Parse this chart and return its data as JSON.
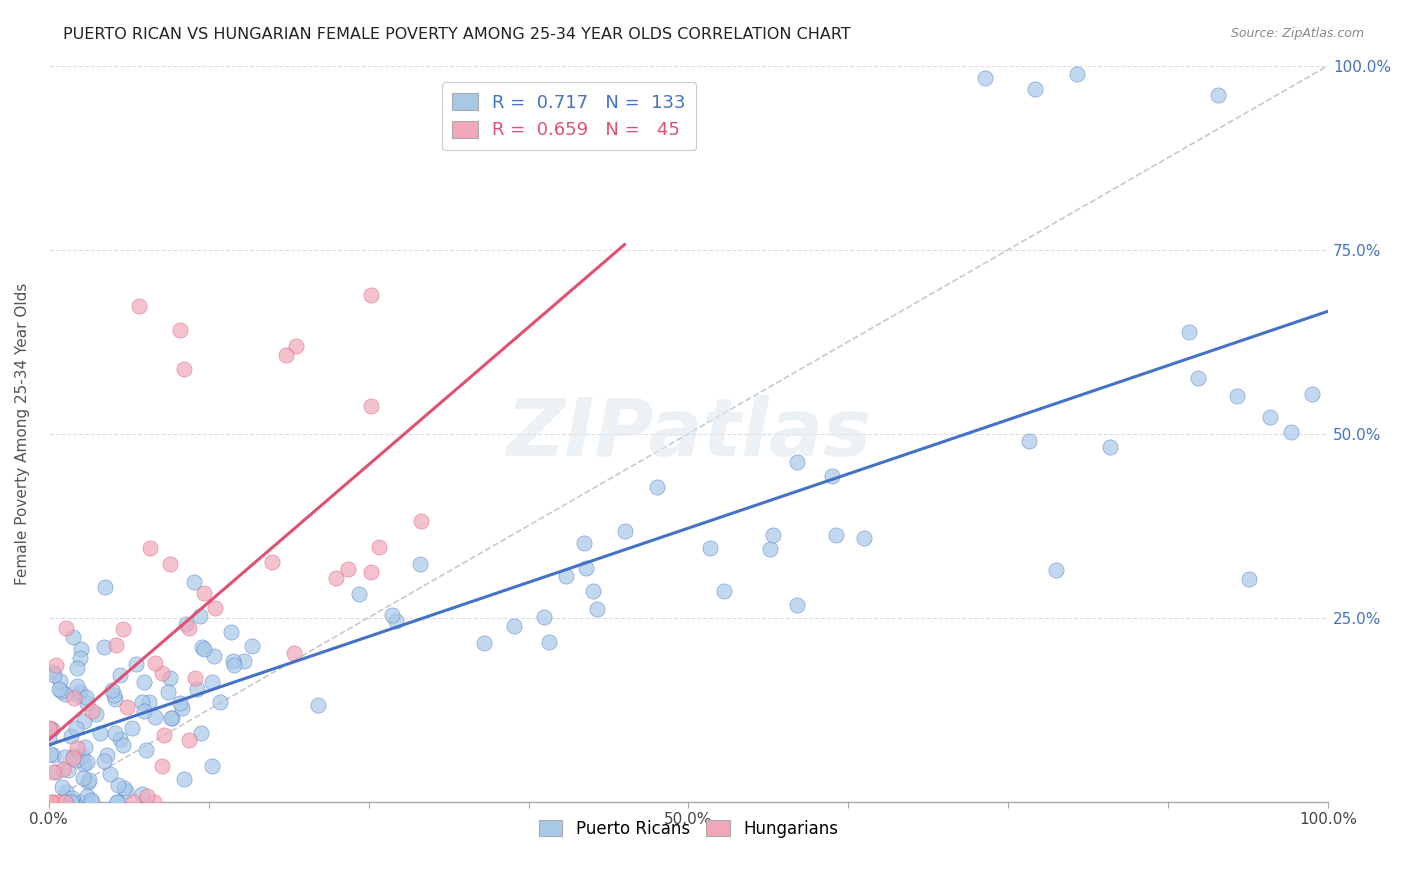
{
  "title": "PUERTO RICAN VS HUNGARIAN FEMALE POVERTY AMONG 25-34 YEAR OLDS CORRELATION CHART",
  "source": "Source: ZipAtlas.com",
  "ylabel": "Female Poverty Among 25-34 Year Olds",
  "pr_R": 0.717,
  "pr_N": 133,
  "hu_R": 0.659,
  "hu_N": 45,
  "pr_color": "#A8C8E8",
  "hu_color": "#F0A8B8",
  "pr_line_color": "#4472C4",
  "hu_line_color": "#E05070",
  "dashed_line_color": "#C8C8C8",
  "watermark": "ZIPatlas",
  "background_color": "#FFFFFF",
  "xlim": [
    0,
    1
  ],
  "ylim": [
    0,
    1
  ],
  "xticks": [
    0,
    0.125,
    0.25,
    0.375,
    0.5,
    0.625,
    0.75,
    0.875,
    1.0
  ],
  "xticklabels": [
    "0.0%",
    "",
    "",
    "",
    "50.0%",
    "",
    "",
    "",
    "100.0%"
  ],
  "yticks_right": [
    0.25,
    0.5,
    0.75,
    1.0
  ],
  "yticklabels_right": [
    "25.0%",
    "50.0%",
    "75.0%",
    "100.0%"
  ],
  "right_tick_color": "#4472C4",
  "legend_labels": [
    "Puerto Ricans",
    "Hungarians"
  ],
  "title_fontsize": 11.5,
  "label_fontsize": 11,
  "tick_fontsize": 11
}
